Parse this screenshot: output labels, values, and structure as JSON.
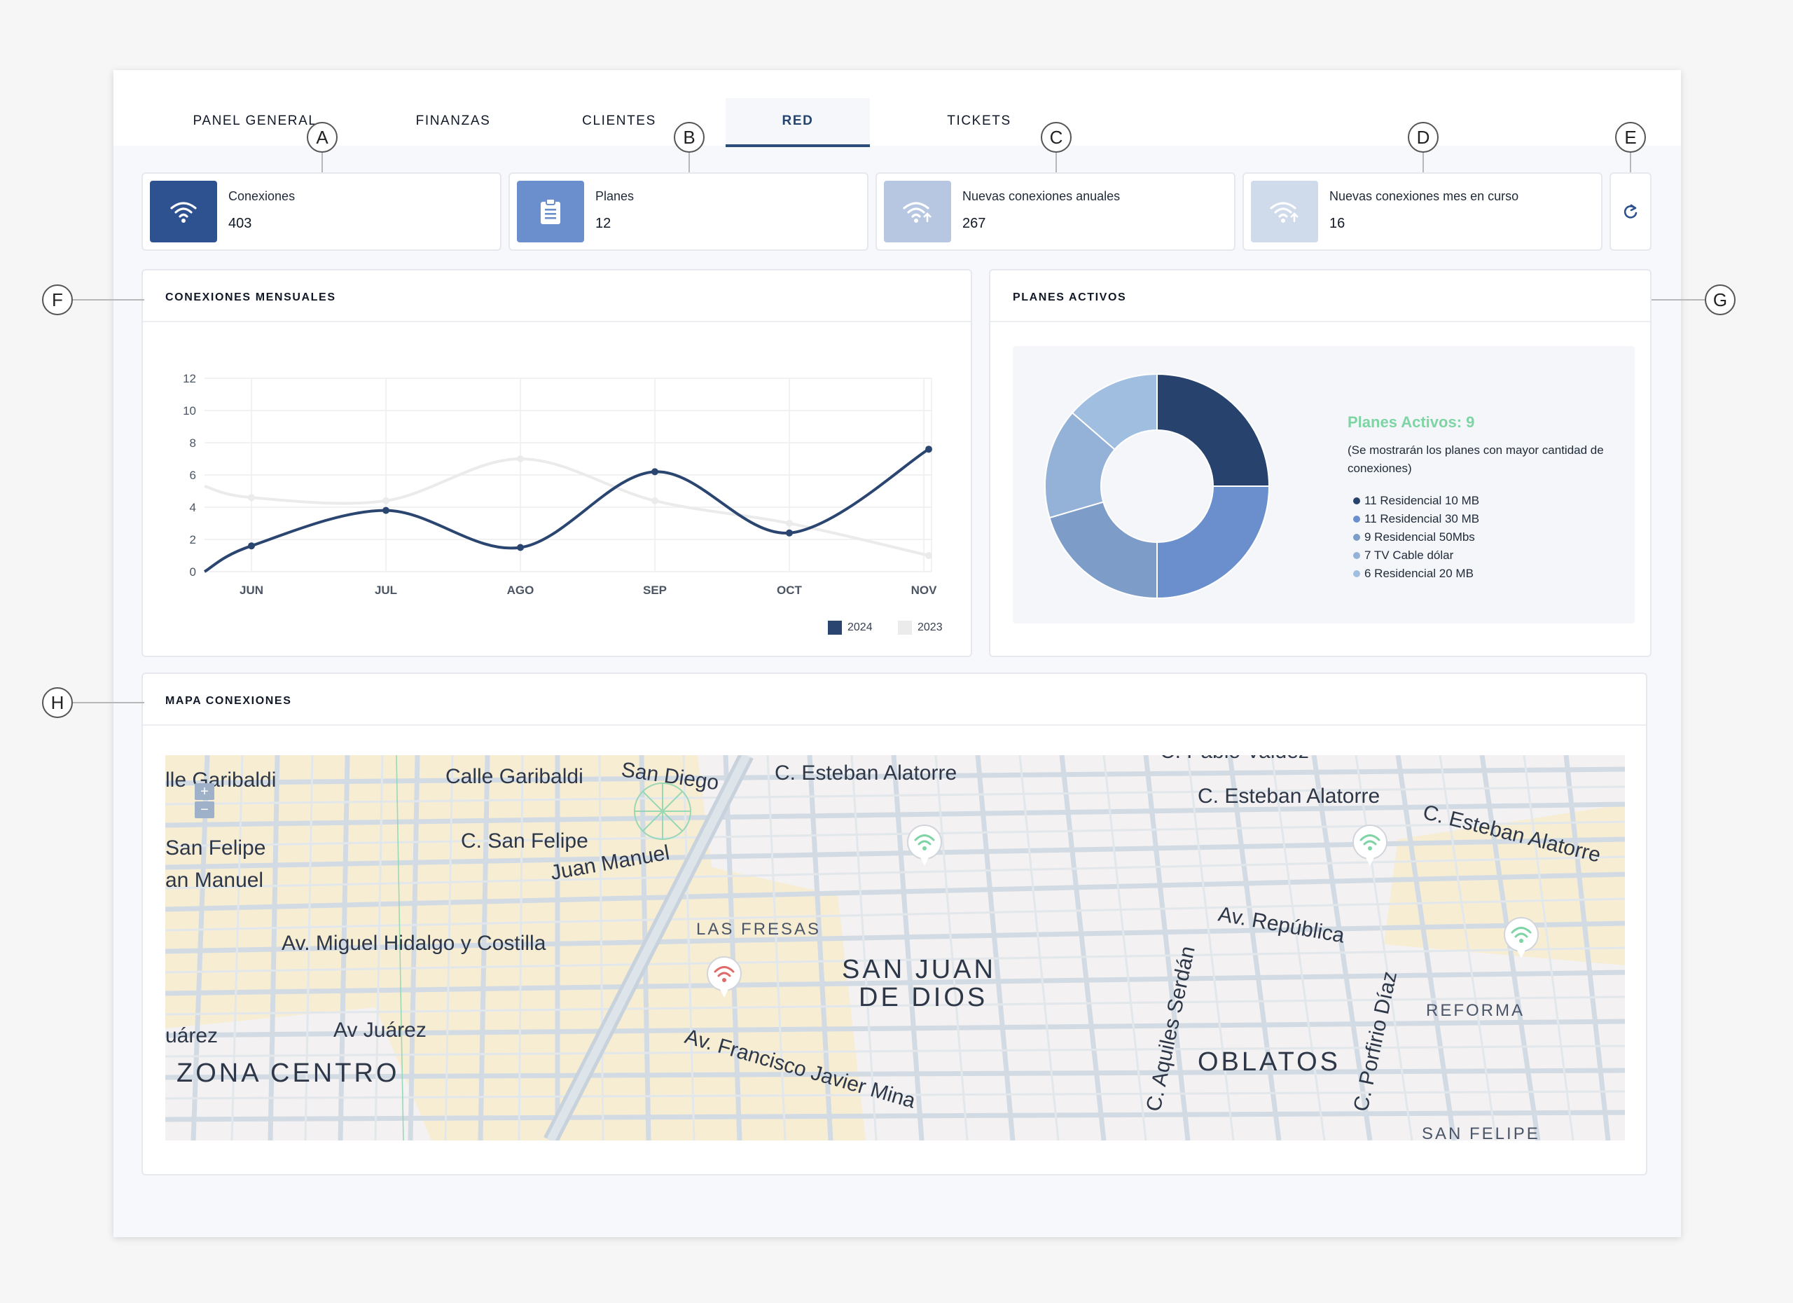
{
  "tabs": [
    {
      "label": "PANEL GENERAL",
      "active": false
    },
    {
      "label": "FINANZAS",
      "active": false
    },
    {
      "label": "CLIENTES",
      "active": false
    },
    {
      "label": "RED",
      "active": true
    },
    {
      "label": "TICKETS",
      "active": false
    }
  ],
  "kpis": [
    {
      "label": "Conexiones",
      "value": "403",
      "icon": "wifi-icon",
      "color": "#2e5190"
    },
    {
      "label": "Planes",
      "value": "12",
      "icon": "clipboard-icon",
      "color": "#6a8fcc"
    },
    {
      "label": "Nuevas conexiones anuales",
      "value": "267",
      "icon": "wifi-up-icon",
      "color": "#b7c7e1"
    },
    {
      "label": "Nuevas conexiones mes en curso",
      "value": "16",
      "icon": "wifi-up-icon",
      "color": "#cfdaeb"
    }
  ],
  "refresh_icon": "refresh-icon",
  "callouts": [
    "A",
    "B",
    "C",
    "D",
    "E",
    "F",
    "G",
    "H"
  ],
  "monthly": {
    "title": "CONEXIONES MENSUALES",
    "chart_data": {
      "type": "line",
      "categories": [
        "JUN",
        "JUL",
        "AGO",
        "SEP",
        "OCT",
        "NOV"
      ],
      "ylim": [
        0,
        12
      ],
      "yticks": [
        0,
        2,
        4,
        6,
        8,
        10,
        12
      ],
      "series": [
        {
          "name": "2024",
          "color": "#2a4670",
          "values": [
            1.6,
            3.8,
            1.5,
            6.2,
            2.4,
            7.6
          ]
        },
        {
          "name": "2023",
          "color": "#ebebeb",
          "values": [
            4.6,
            4.4,
            7.0,
            4.4,
            3.0,
            1.0
          ]
        }
      ],
      "grid": true,
      "legend": "bottom-right"
    }
  },
  "plans": {
    "title": "PLANES ACTIVOS",
    "headline": "Planes Activos: 9",
    "note": "(Se mostrarán los planes con mayor cantidad de conexiones)",
    "chart_data": {
      "type": "pie",
      "labels": [
        "Residencial 10 MB",
        "Residencial 30 MB",
        "Residencial 50Mbs",
        "TV Cable dólar",
        "Residencial 20 MB"
      ],
      "values": [
        11,
        11,
        9,
        7,
        6
      ],
      "colors": [
        "#27426c",
        "#6a8fcc",
        "#7d9cc8",
        "#94b1d7",
        "#a0bfe0"
      ]
    },
    "legend": [
      "11 Residencial 10 MB",
      "11 Residencial 30 MB",
      "9 Residencial 50Mbs",
      "7 TV Cable dólar",
      "6 Residencial 20 MB"
    ]
  },
  "map": {
    "title": "MAPA CONEXIONES",
    "zoom_in": "+",
    "zoom_out": "−",
    "streets": [
      "lle Garibaldi",
      "Calle Garibaldi",
      "San Diego",
      "C. Esteban Alatorre",
      "C. Pablo Valdez",
      "C. Esteban Alatorre",
      "C. Esteban Alatorre",
      "San Felipe",
      "C. San Felipe",
      "Juan Manuel",
      "an Manuel",
      "Av. República",
      "LAS FRESAS",
      "Av. Miguel Hidalgo y Costilla",
      "SAN JUAN",
      "DE DIOS",
      "REFORMA",
      "uárez",
      "Av Juárez",
      "ZONA CENTRO",
      "Av. Francisco Javier Mina",
      "C. Aquiles Serdán",
      "OBLATOS",
      "C. Porfirio Díaz",
      "SAN FELIPE"
    ],
    "markers": [
      {
        "status": "online",
        "color": "#7ed4a4"
      },
      {
        "status": "online",
        "color": "#7ed4a4"
      },
      {
        "status": "online",
        "color": "#7ed4a4"
      },
      {
        "status": "offline",
        "color": "#e06a6a"
      }
    ]
  }
}
